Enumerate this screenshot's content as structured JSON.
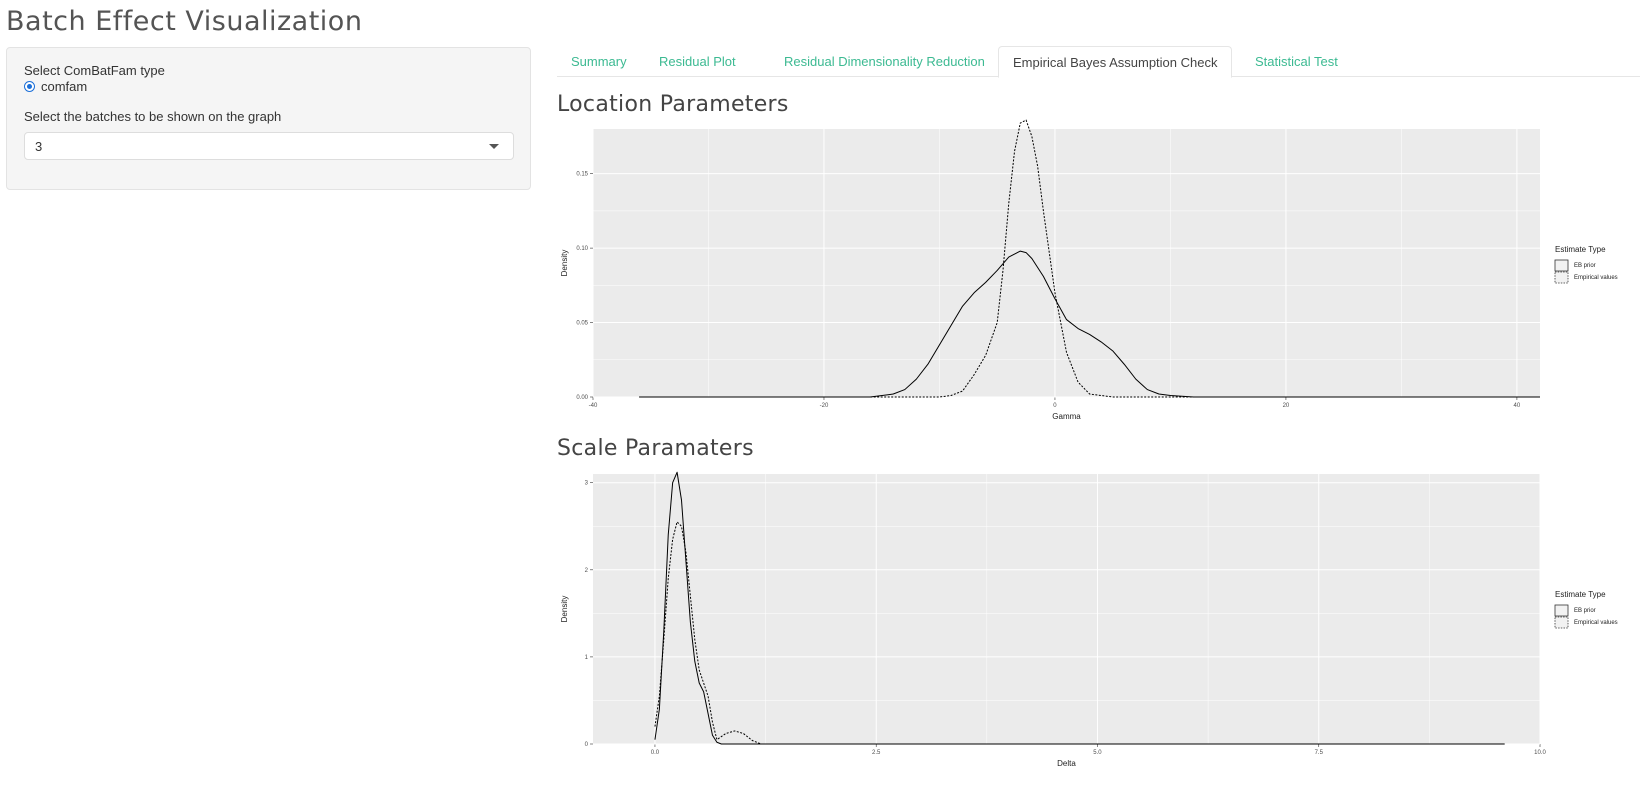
{
  "app": {
    "title": "Batch Effect Visualization"
  },
  "sidebar": {
    "type_label": "Select ComBatFam type",
    "type_options": [
      {
        "label": "comfam",
        "selected": true
      }
    ],
    "batches_label": "Select the batches to be shown on the graph",
    "batches_value": "3"
  },
  "tabs": [
    {
      "label": "Summary",
      "active": false
    },
    {
      "label": "Residual Plot",
      "active": false
    },
    {
      "label": "Residual Dimensionality Reduction",
      "active": false
    },
    {
      "label": "Empirical Bayes Assumption Check",
      "active": true
    },
    {
      "label": "Statistical Test",
      "active": false
    }
  ],
  "colors": {
    "tab_link": "#3cba92",
    "panel_bg": "#ebebeb",
    "grid": "#ffffff",
    "curve": "#000000"
  },
  "sections": {
    "location_title": "Location Parameters",
    "scale_title": "Scale Paramaters"
  },
  "chart_data": [
    {
      "type": "line",
      "xlabel": "Gamma",
      "ylabel": "Density",
      "xlim": [
        -40,
        42
      ],
      "ylim": [
        0,
        0.18
      ],
      "xticks": [
        -40,
        -20,
        0,
        20,
        40
      ],
      "xtick_labels": [
        "-40",
        "-20",
        "0",
        "20",
        "40"
      ],
      "yticks": [
        0,
        0.05,
        0.1,
        0.15
      ],
      "ytick_labels": [
        "0.00",
        "0.05",
        "0.10",
        "0.15"
      ],
      "grid": true,
      "legend": {
        "title": "Estimate Type",
        "position": "right"
      },
      "series": [
        {
          "name": "EB prior",
          "dash": "solid",
          "x": [
            -36,
            -16,
            -14,
            -13,
            -12,
            -11,
            -10,
            -9,
            -8,
            -7,
            -6,
            -5,
            -4,
            -3,
            -2.5,
            -2,
            -1,
            0,
            1,
            2,
            3,
            4,
            5,
            6,
            7,
            8,
            9,
            10,
            12,
            42
          ],
          "y": [
            0,
            0,
            0.002,
            0.005,
            0.012,
            0.022,
            0.035,
            0.048,
            0.061,
            0.07,
            0.077,
            0.085,
            0.094,
            0.098,
            0.097,
            0.093,
            0.081,
            0.066,
            0.052,
            0.046,
            0.042,
            0.037,
            0.031,
            0.022,
            0.012,
            0.005,
            0.002,
            0.001,
            0,
            0
          ]
        },
        {
          "name": "Empirical values",
          "dash": "dotted",
          "x": [
            -36,
            -10,
            -9,
            -8,
            -7,
            -6,
            -5,
            -4.5,
            -4,
            -3.5,
            -3,
            -2.5,
            -2,
            -1.5,
            -1,
            0,
            1,
            2,
            3,
            4,
            5,
            6,
            42
          ],
          "y": [
            0,
            0,
            0.001,
            0.004,
            0.015,
            0.028,
            0.05,
            0.085,
            0.13,
            0.165,
            0.184,
            0.186,
            0.175,
            0.155,
            0.125,
            0.07,
            0.03,
            0.01,
            0.002,
            0.001,
            0,
            0,
            0
          ]
        }
      ]
    },
    {
      "type": "line",
      "xlabel": "Delta",
      "ylabel": "Density",
      "xlim": [
        -0.7,
        10.0
      ],
      "ylim": [
        0,
        3.1
      ],
      "xticks": [
        0,
        2.5,
        5,
        7.5,
        10
      ],
      "xtick_labels": [
        "0.0",
        "2.5",
        "5.0",
        "7.5",
        "10.0"
      ],
      "yticks": [
        0,
        1,
        2,
        3
      ],
      "ytick_labels": [
        "0",
        "1",
        "2",
        "3"
      ],
      "grid": true,
      "legend": {
        "title": "Estimate Type",
        "position": "right"
      },
      "series": [
        {
          "name": "EB prior",
          "dash": "solid",
          "x": [
            0.0,
            0.05,
            0.1,
            0.15,
            0.2,
            0.25,
            0.3,
            0.35,
            0.4,
            0.45,
            0.5,
            0.55,
            0.6,
            0.65,
            0.7,
            0.75,
            0.8,
            1.0,
            9.6
          ],
          "y": [
            0.05,
            0.4,
            1.3,
            2.4,
            3.0,
            3.12,
            2.8,
            2.1,
            1.4,
            0.95,
            0.7,
            0.6,
            0.35,
            0.1,
            0.02,
            0,
            0,
            0,
            0
          ]
        },
        {
          "name": "Empirical values",
          "dash": "dotted",
          "x": [
            0.0,
            0.05,
            0.1,
            0.15,
            0.2,
            0.25,
            0.3,
            0.35,
            0.4,
            0.45,
            0.5,
            0.55,
            0.6,
            0.65,
            0.7,
            0.8,
            0.9,
            1.0,
            1.1,
            1.2,
            9.6
          ],
          "y": [
            0.2,
            0.55,
            1.2,
            1.9,
            2.35,
            2.55,
            2.5,
            2.2,
            1.7,
            1.2,
            0.85,
            0.7,
            0.55,
            0.25,
            0.05,
            0.12,
            0.15,
            0.12,
            0.04,
            0,
            0
          ]
        }
      ]
    }
  ]
}
